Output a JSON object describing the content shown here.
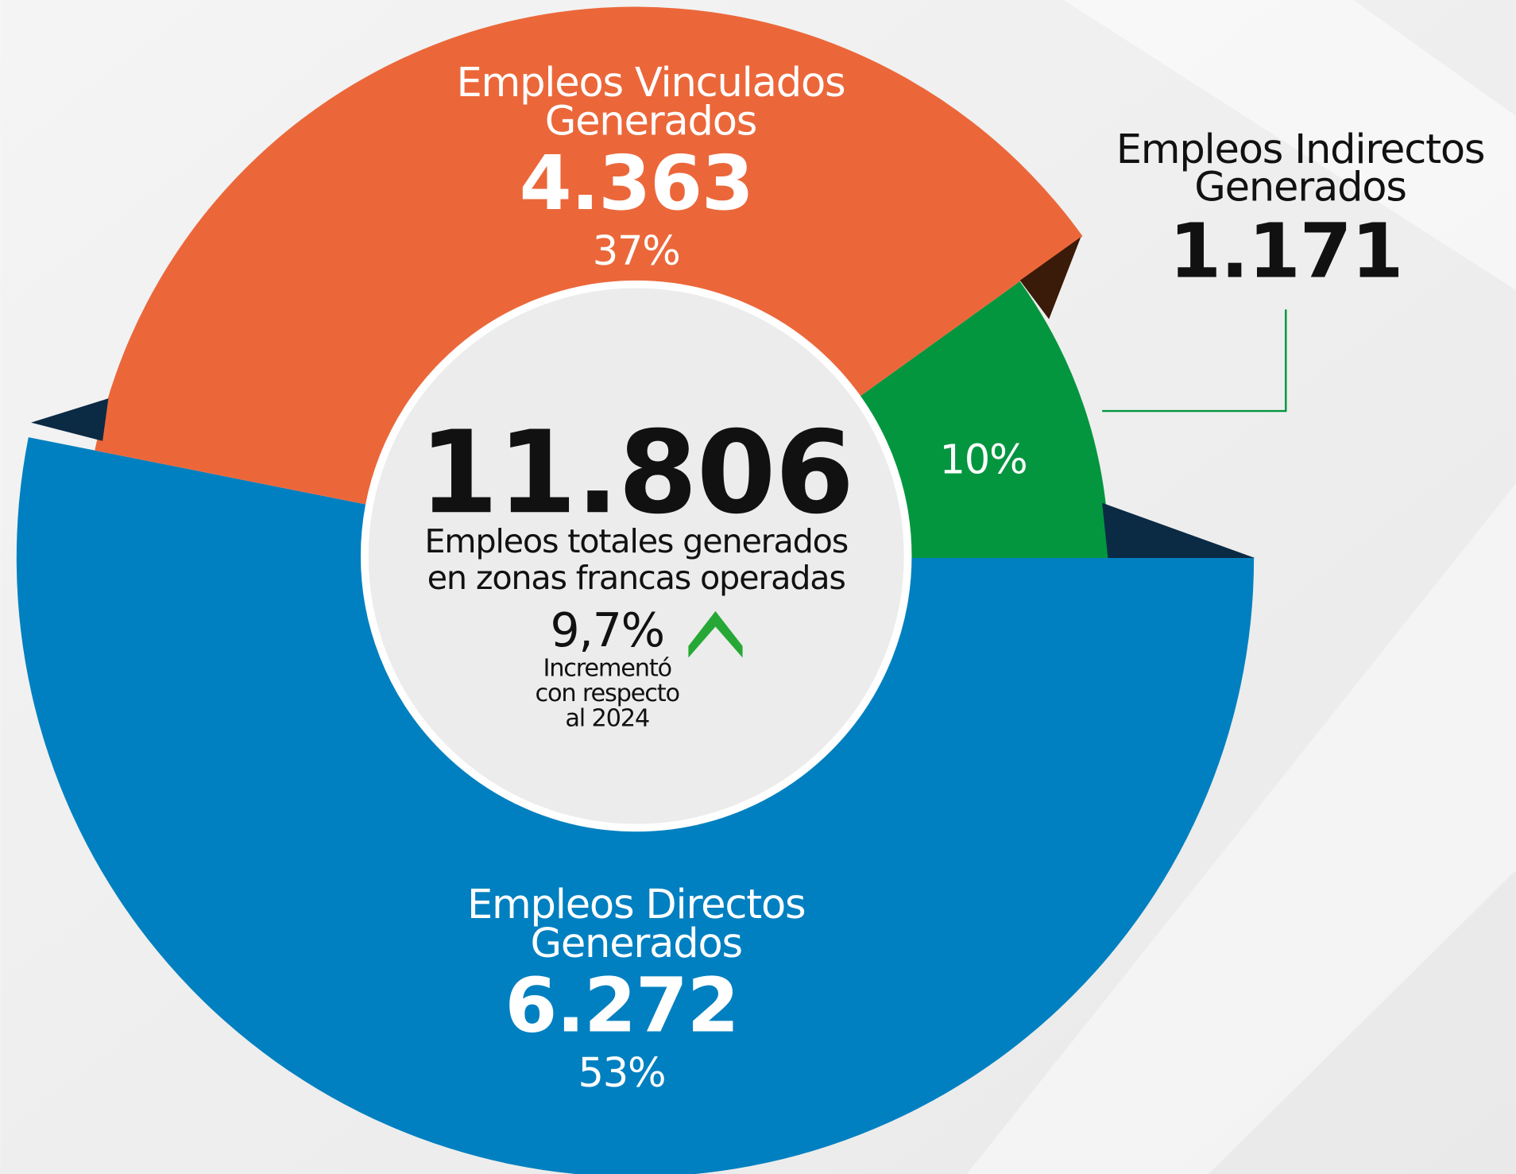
{
  "chart_data": {
    "type": "pie",
    "labels": [
      [
        "Empleos Directos",
        "Generados"
      ],
      [
        "Empleos Vinculados",
        "Generados"
      ],
      [
        "Empleos Indirectos",
        "Generados"
      ]
    ],
    "values": [
      6272,
      4363,
      1171
    ],
    "value_labels": [
      "6.272",
      "4.363",
      "1.171"
    ],
    "percent_labels": [
      "53%",
      "37%",
      "10%"
    ],
    "colors": [
      "#0080c0",
      "#eb673a",
      "#03963f"
    ],
    "total": "11.806",
    "total_caption": [
      "Empleos totales generados",
      "en zonas francas operadas"
    ],
    "growth": "9,7%",
    "growth_note": [
      "Incrementó",
      "con respecto",
      "al 2024"
    ]
  }
}
